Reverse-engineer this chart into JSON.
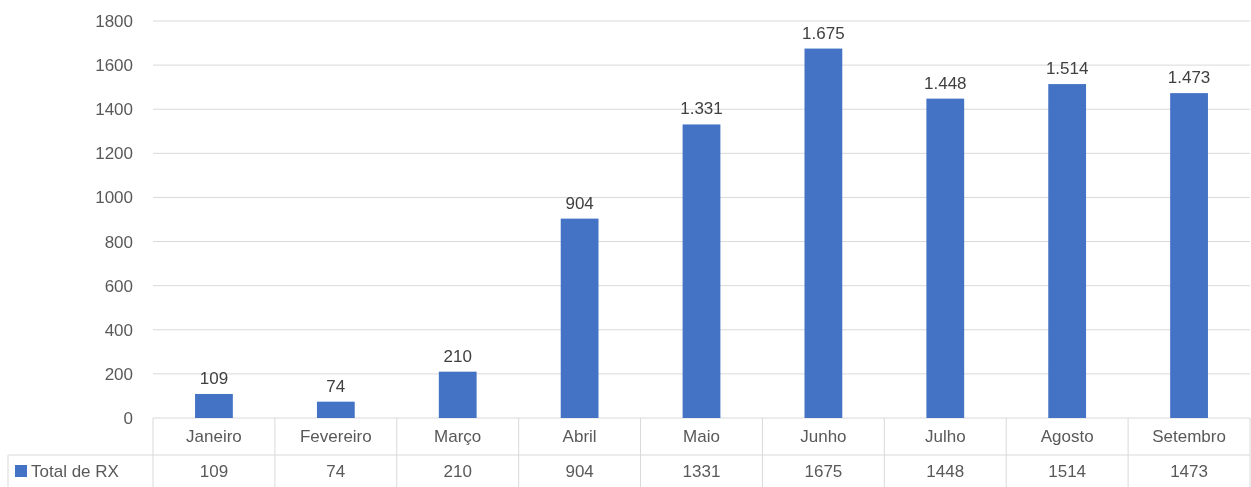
{
  "chart_data": {
    "type": "bar",
    "categories": [
      "Janeiro",
      "Fevereiro",
      "Março",
      "Abril",
      "Maio",
      "Junho",
      "Julho",
      "Agosto",
      "Setembro"
    ],
    "series": [
      {
        "name": "Total de RX",
        "color": "#4472c4",
        "values": [
          109,
          74,
          210,
          904,
          1331,
          1675,
          1448,
          1514,
          1473
        ]
      }
    ],
    "data_labels": true,
    "annotations": [
      {
        "text": "109",
        "x": "Janeiro",
        "y": 109
      },
      {
        "text": "74",
        "x": "Fevereiro",
        "y": 74
      },
      {
        "text": "210",
        "x": "Março",
        "y": 210
      },
      {
        "text": "904",
        "x": "Abril",
        "y": 904
      },
      {
        "text": "1.331",
        "x": "Maio",
        "y": 1331
      },
      {
        "text": "1.675",
        "x": "Junho",
        "y": 1675
      },
      {
        "text": "1.448",
        "x": "Julho",
        "y": 1448
      },
      {
        "text": "1.514",
        "x": "Agosto",
        "y": 1514
      },
      {
        "text": "1.473",
        "x": "Setembro",
        "y": 1473
      }
    ],
    "ylim": [
      0,
      1800
    ],
    "yticks": [
      0,
      200,
      400,
      600,
      800,
      1000,
      1200,
      1400,
      1600,
      1800
    ],
    "grid": "y",
    "legend": "bottom left"
  }
}
